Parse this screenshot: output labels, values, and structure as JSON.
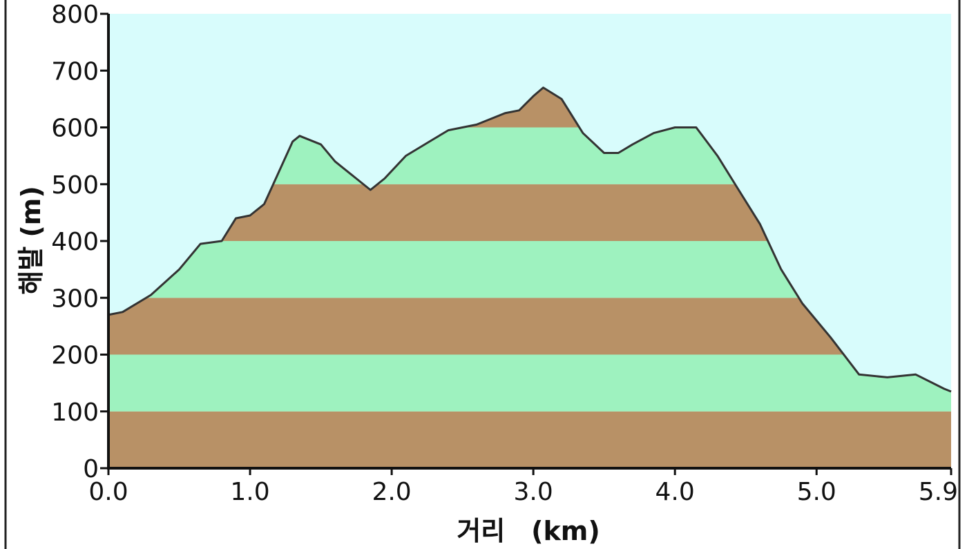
{
  "chart_data": {
    "type": "area",
    "xlabel": "거리　(km)",
    "ylabel": "해발 (m)",
    "xlim": [
      0,
      5.95
    ],
    "ylim": [
      0,
      800
    ],
    "x_ticks": [
      "0.0",
      "1.0",
      "2.0",
      "3.0",
      "4.0",
      "5.0",
      "5.9"
    ],
    "x_tick_values": [
      0,
      1,
      2,
      3,
      4,
      5,
      5.95
    ],
    "y_ticks": [
      "0",
      "100",
      "200",
      "300",
      "400",
      "500",
      "600",
      "700",
      "800"
    ],
    "y_tick_values": [
      0,
      100,
      200,
      300,
      400,
      500,
      600,
      700,
      800
    ],
    "grid": false,
    "legend": "none",
    "colors": {
      "sky": "#d8fcfc",
      "band_brown": "#b89166",
      "band_green": "#9ef2bf",
      "profile_line": "#333333",
      "axis": "#111111"
    },
    "band_height_m": 100,
    "series": [
      {
        "x": [
          0.0,
          0.1,
          0.3,
          0.5,
          0.65,
          0.8,
          0.9,
          1.0,
          1.1,
          1.2,
          1.3,
          1.35,
          1.5,
          1.6,
          1.75,
          1.85,
          1.95,
          2.1,
          2.3,
          2.4,
          2.6,
          2.8,
          2.9,
          3.0,
          3.07,
          3.2,
          3.35,
          3.5,
          3.6,
          3.7,
          3.85,
          4.0,
          4.15,
          4.3,
          4.45,
          4.6,
          4.75,
          4.9,
          5.1,
          5.3,
          5.5,
          5.7,
          5.9,
          5.95
        ],
        "y": [
          270,
          275,
          305,
          350,
          395,
          400,
          440,
          445,
          465,
          520,
          575,
          585,
          570,
          540,
          510,
          490,
          510,
          550,
          580,
          595,
          605,
          625,
          630,
          655,
          670,
          650,
          590,
          555,
          555,
          570,
          590,
          600,
          600,
          550,
          490,
          430,
          350,
          290,
          230,
          165,
          160,
          165,
          140,
          135
        ]
      }
    ]
  }
}
